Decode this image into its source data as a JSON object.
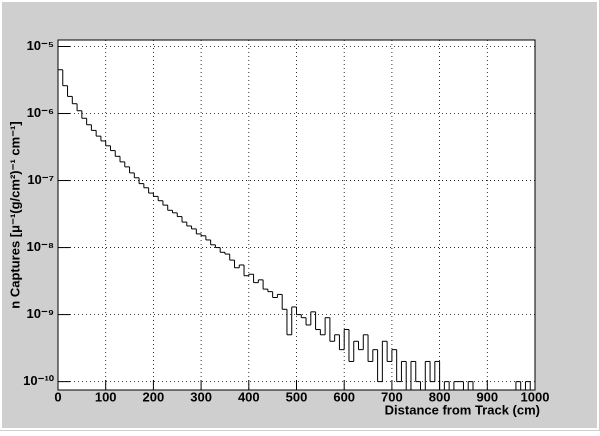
{
  "chart_data": {
    "type": "histogram",
    "log_y": true,
    "grid": true,
    "color": "#000000",
    "xlabel": "Distance from Track (cm)",
    "ylabel": "n Captures [μ⁻¹(g/cm²)⁻¹ cm⁻¹]",
    "xlim": [
      0,
      1000
    ],
    "ylim": [
      7.5e-11,
      1.25e-05
    ],
    "xticks": [
      0,
      100,
      200,
      300,
      400,
      500,
      600,
      700,
      800,
      900,
      1000
    ],
    "yticks": [
      {
        "value": 1e-10,
        "label": "10⁻¹⁰"
      },
      {
        "value": 1e-09,
        "label": "10⁻⁹"
      },
      {
        "value": 1e-08,
        "label": "10⁻⁸"
      },
      {
        "value": 1e-07,
        "label": "10⁻⁷"
      },
      {
        "value": 1e-06,
        "label": "10⁻⁶"
      },
      {
        "value": 1e-05,
        "label": "10⁻⁵"
      }
    ],
    "bins": [
      0,
      10,
      20,
      30,
      40,
      50,
      60,
      70,
      80,
      90,
      100,
      110,
      120,
      130,
      140,
      150,
      160,
      170,
      180,
      190,
      200,
      210,
      220,
      230,
      240,
      250,
      260,
      270,
      280,
      290,
      300,
      310,
      320,
      330,
      340,
      350,
      360,
      370,
      380,
      390,
      400,
      410,
      420,
      430,
      440,
      450,
      460,
      470,
      480,
      490,
      500,
      510,
      520,
      530,
      540,
      550,
      560,
      570,
      580,
      590,
      600,
      610,
      620,
      630,
      640,
      650,
      660,
      670,
      680,
      690,
      700,
      710,
      720,
      730,
      740,
      750,
      760,
      770,
      780,
      790,
      800,
      810,
      820,
      830,
      840,
      850,
      860,
      870,
      880,
      890,
      900,
      910,
      920,
      930,
      940,
      950,
      960,
      970,
      980,
      990,
      1000
    ],
    "values": [
      4.5e-06,
      2.6e-06,
      1.8e-06,
      1.4e-06,
      1.1e-06,
      8.5e-07,
      6.8e-07,
      5.6e-07,
      4.6e-07,
      3.9e-07,
      3.3e-07,
      2.8e-07,
      2.3e-07,
      1.9e-07,
      1.6e-07,
      1.3e-07,
      1.1e-07,
      9e-08,
      7.8e-08,
      6.5e-08,
      5.8e-08,
      5e-08,
      4.3e-08,
      3.6e-08,
      3.3e-08,
      2.9e-08,
      2.4e-08,
      2.1e-08,
      1.9e-08,
      1.6e-08,
      1.5e-08,
      1.3e-08,
      1.1e-08,
      1e-08,
      8.5e-09,
      8e-09,
      6.5e-09,
      5e-09,
      5.5e-09,
      3.8e-09,
      4e-09,
      3e-09,
      3.3e-09,
      2.4e-09,
      2.2e-09,
      1.8e-09,
      2e-09,
      1.2e-09,
      5e-10,
      1.3e-09,
      1e-09,
      9e-10,
      7e-10,
      1.1e-09,
      6e-10,
      5e-10,
      9e-10,
      4e-10,
      5e-10,
      3e-10,
      6e-10,
      2e-10,
      4e-10,
      3e-10,
      5e-10,
      2e-10,
      3e-10,
      1e-10,
      4e-10,
      2e-10,
      3e-10,
      1e-10,
      2e-10,
      0,
      2e-10,
      1e-10,
      0,
      2e-10,
      1e-10,
      2e-10,
      0,
      1e-10,
      0,
      1e-10,
      1e-10,
      0,
      1e-10,
      0,
      0,
      0,
      0,
      0,
      0,
      0,
      0,
      0,
      1e-10,
      0,
      1e-10,
      0
    ]
  }
}
